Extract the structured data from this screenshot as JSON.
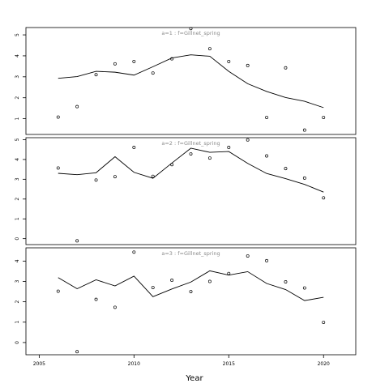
{
  "chart_data": {
    "type": "line",
    "xlabel": "Year",
    "xlim": [
      2004.3,
      2021.7
    ],
    "x_ticks": [
      2005,
      2010,
      2015,
      2020
    ],
    "panels": [
      {
        "title": "a=1 : f=Gillnet_spring",
        "ylim": [
          0.25,
          5.35
        ],
        "y_ticks": [
          1,
          2,
          3,
          4,
          5
        ],
        "points": {
          "x": [
            2006,
            2007,
            2008,
            2009,
            2010,
            2011,
            2012,
            2013,
            2014,
            2015,
            2016,
            2017,
            2018,
            2019,
            2020
          ],
          "y": [
            1.08,
            1.58,
            3.1,
            3.62,
            3.73,
            3.18,
            3.86,
            5.3,
            4.34,
            3.73,
            3.54,
            1.06,
            3.43,
            0.46,
            1.06
          ]
        },
        "line": {
          "x": [
            2006,
            2007,
            2008,
            2009,
            2010,
            2011,
            2012,
            2013,
            2014,
            2015,
            2016,
            2017,
            2018,
            2019,
            2020
          ],
          "y": [
            2.93,
            3.01,
            3.26,
            3.22,
            3.08,
            3.48,
            3.9,
            4.05,
            3.98,
            3.26,
            2.67,
            2.3,
            2.01,
            1.83,
            1.53
          ]
        }
      },
      {
        "title": "a=2 : f=Gillnet_spring",
        "ylim": [
          -0.3,
          5.1
        ],
        "y_ticks": [
          0,
          1,
          2,
          3,
          4,
          5
        ],
        "points": {
          "x": [
            2006,
            2007,
            2008,
            2009,
            2010,
            2011,
            2012,
            2013,
            2014,
            2015,
            2016,
            2017,
            2018,
            2019,
            2020
          ],
          "y": [
            3.57,
            -0.11,
            2.96,
            3.13,
            4.61,
            3.15,
            3.74,
            4.28,
            4.07,
            4.61,
            4.99,
            4.18,
            3.54,
            3.06,
            2.06
          ]
        },
        "line": {
          "x": [
            2006,
            2007,
            2008,
            2009,
            2010,
            2011,
            2012,
            2013,
            2014,
            2015,
            2016,
            2017,
            2018,
            2019,
            2020
          ],
          "y": [
            3.3,
            3.23,
            3.33,
            4.14,
            3.35,
            3.05,
            3.82,
            4.57,
            4.36,
            4.4,
            3.8,
            3.29,
            3.03,
            2.74,
            2.35
          ]
        }
      },
      {
        "title": "a=3 : f=Gillnet_spring",
        "ylim": [
          -0.6,
          4.65
        ],
        "y_ticks": [
          0,
          1,
          2,
          3,
          4
        ],
        "points": {
          "x": [
            2006,
            2007,
            2008,
            2009,
            2010,
            2011,
            2012,
            2013,
            2014,
            2015,
            2016,
            2017,
            2018,
            2019,
            2020
          ],
          "y": [
            2.52,
            -0.45,
            2.12,
            1.73,
            4.44,
            2.7,
            3.06,
            2.5,
            3.0,
            3.39,
            4.25,
            4.02,
            2.98,
            2.68,
            0.99
          ]
        },
        "line": {
          "x": [
            2006,
            2007,
            2008,
            2009,
            2010,
            2011,
            2012,
            2013,
            2014,
            2015,
            2016,
            2017,
            2018,
            2019,
            2020
          ],
          "y": [
            3.19,
            2.64,
            3.08,
            2.78,
            3.26,
            2.25,
            2.63,
            2.97,
            3.52,
            3.31,
            3.48,
            2.9,
            2.6,
            2.06,
            2.22
          ]
        }
      }
    ]
  }
}
